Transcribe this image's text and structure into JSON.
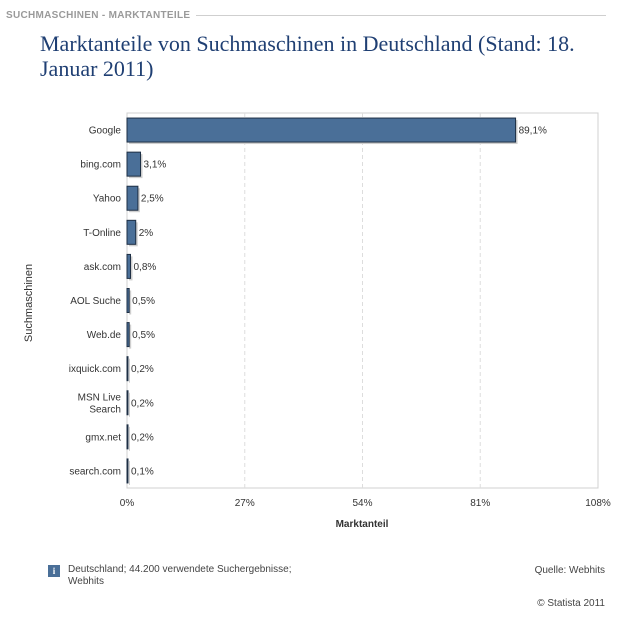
{
  "header": {
    "section_label": "SUCHMASCHINEN - MARKTANTEILE"
  },
  "chart_title": "Marktanteile von Suchmaschinen in Deutschland (Stand: 18. Januar 2011)",
  "footer": {
    "info_icon_label": "i",
    "note": "Deutschland; 44.200 verwendete Suchergebnisse; Webhits",
    "source": "Quelle: Webhits",
    "copyright": "© Statista 2011"
  },
  "colors": {
    "bar": "#4a6f98",
    "title": "#1f3f73",
    "grid": "#dddddd"
  },
  "chart_data": {
    "type": "bar",
    "orientation": "horizontal",
    "categories": [
      "Google",
      "bing.com",
      "Yahoo",
      "T-Online",
      "ask.com",
      "AOL Suche",
      "Web.de",
      "ixquick.com",
      "MSN Live Search",
      "gmx.net",
      "search.com"
    ],
    "category_labels": [
      [
        "Google"
      ],
      [
        "bing.com"
      ],
      [
        "Yahoo"
      ],
      [
        "T-Online"
      ],
      [
        "ask.com"
      ],
      [
        "AOL Suche"
      ],
      [
        "Web.de"
      ],
      [
        "ixquick.com"
      ],
      [
        "MSN Live",
        "Search"
      ],
      [
        "gmx.net"
      ],
      [
        "search.com"
      ]
    ],
    "values": [
      89.1,
      3.1,
      2.5,
      2,
      0.8,
      0.5,
      0.5,
      0.2,
      0.2,
      0.2,
      0.1
    ],
    "value_labels": [
      "89,1%",
      "3,1%",
      "2,5%",
      "2%",
      "0,8%",
      "0,5%",
      "0,5%",
      "0,2%",
      "0,2%",
      "0,2%",
      "0,1%"
    ],
    "xlim": [
      0,
      108
    ],
    "x_ticks": [
      0,
      27,
      54,
      81,
      108
    ],
    "x_tick_labels": [
      "0%",
      "27%",
      "54%",
      "81%",
      "108%"
    ],
    "xlabel": "Marktanteil",
    "ylabel": "Suchmaschinen",
    "grid": true
  }
}
